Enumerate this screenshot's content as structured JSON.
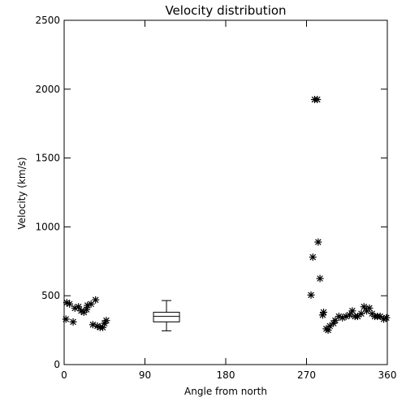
{
  "chart_data": {
    "type": "scatter",
    "title": "Velocity distribution",
    "xlabel": "Angle from north",
    "ylabel": "Velocity (km/s)",
    "xlim": [
      0,
      360
    ],
    "ylim": [
      0,
      2500
    ],
    "xticks": [
      0,
      90,
      180,
      270,
      360
    ],
    "yticks": [
      0,
      500,
      1000,
      1500,
      2000,
      2500
    ],
    "grid": false,
    "marker": "asterisk",
    "colors": {
      "foreground": "#000000",
      "background": "#ffffff"
    },
    "series": [
      {
        "points": [
          [
            2,
            330
          ],
          [
            3,
            450
          ],
          [
            6,
            440
          ],
          [
            10,
            310
          ],
          [
            12,
            410
          ],
          [
            16,
            420
          ],
          [
            19,
            390
          ],
          [
            22,
            380
          ],
          [
            25,
            400
          ],
          [
            26,
            430
          ],
          [
            30,
            440
          ],
          [
            32,
            290
          ],
          [
            35,
            470
          ],
          [
            37,
            280
          ],
          [
            40,
            270
          ],
          [
            43,
            270
          ],
          [
            45,
            300
          ],
          [
            47,
            320
          ],
          [
            275,
            505
          ],
          [
            277,
            780
          ],
          [
            279,
            1925
          ],
          [
            282,
            1925
          ],
          [
            283,
            890
          ],
          [
            285,
            625
          ],
          [
            288,
            360
          ],
          [
            289,
            380
          ],
          [
            292,
            260
          ],
          [
            294,
            250
          ],
          [
            296,
            280
          ],
          [
            300,
            300
          ],
          [
            302,
            320
          ],
          [
            306,
            350
          ],
          [
            310,
            340
          ],
          [
            314,
            350
          ],
          [
            318,
            360
          ],
          [
            321,
            390
          ],
          [
            324,
            350
          ],
          [
            327,
            350
          ],
          [
            331,
            370
          ],
          [
            334,
            420
          ],
          [
            337,
            390
          ],
          [
            340,
            410
          ],
          [
            343,
            370
          ],
          [
            346,
            350
          ],
          [
            349,
            350
          ],
          [
            352,
            350
          ],
          [
            356,
            330
          ],
          [
            359,
            340
          ]
        ]
      }
    ],
    "boxplot": {
      "x": 114,
      "min": 245,
      "q1": 310,
      "median": 350,
      "q3": 380,
      "max": 465
    }
  }
}
